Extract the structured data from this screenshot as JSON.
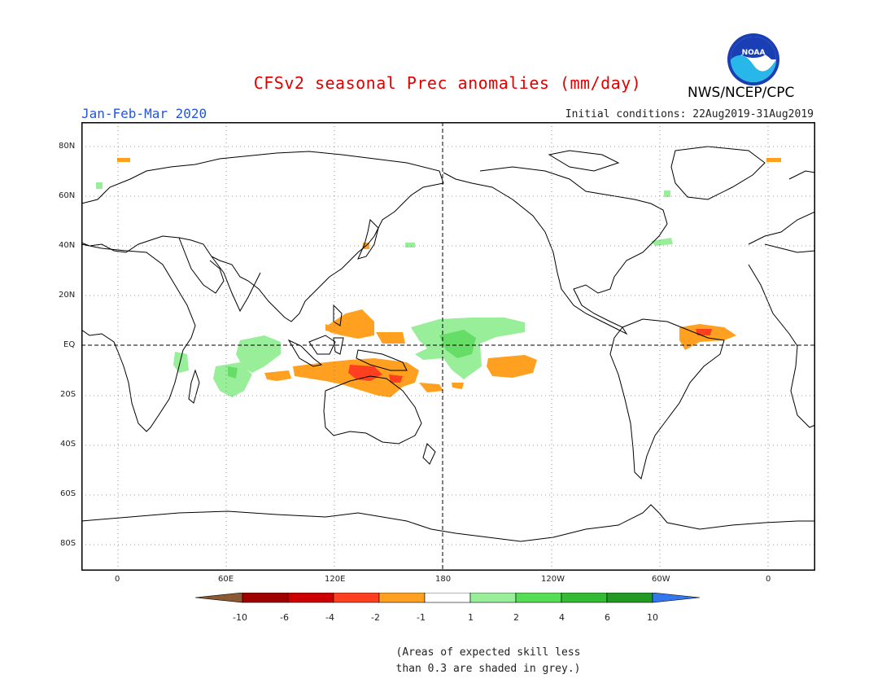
{
  "header": {
    "title": "CFSv2 seasonal Prec anomalies (mm/day)",
    "agency": "NWS/NCEP/CPC",
    "logo_text": "NOAA",
    "period": "Jan-Feb-Mar 2020",
    "initial_conditions": "Initial conditions: 22Aug2019-31Aug2019"
  },
  "map": {
    "projection": "cylindrical equidistant, centered 180",
    "lat_labels": [
      "80N",
      "60N",
      "40N",
      "20N",
      "EQ",
      "20S",
      "40S",
      "60S",
      "80S"
    ],
    "lon_labels": [
      "0",
      "60E",
      "120E",
      "180",
      "120W",
      "60W",
      "0"
    ],
    "grid": "dotted",
    "anomaly_regions": [
      {
        "name": "philippines-sea",
        "category": "-2 to -1",
        "color": "#ffa020"
      },
      {
        "name": "new-guinea-north",
        "category": "-2 to -1",
        "color": "#ffa020"
      },
      {
        "name": "maritime-continent",
        "category": "-4 to -2",
        "color": "#ff4020"
      },
      {
        "name": "indian-ocean-south",
        "category": "-2 to -1",
        "color": "#ffa020"
      },
      {
        "name": "south-pacific-15s",
        "category": "-2 to -1",
        "color": "#ffa020"
      },
      {
        "name": "brazil-northeast",
        "category": "-4 to -1",
        "color": "#ffa020"
      },
      {
        "name": "central-pacific-equator",
        "category": "1 to 4",
        "color": "#66dd66"
      },
      {
        "name": "indian-ocean-west",
        "category": "1 to 2",
        "color": "#99ee99"
      },
      {
        "name": "east-africa",
        "category": "1 to 2",
        "color": "#99ee99"
      }
    ]
  },
  "colorbar": {
    "labels": [
      "-10",
      "-6",
      "-4",
      "-2",
      "-1",
      "1",
      "2",
      "4",
      "6",
      "10"
    ],
    "colors": [
      "#8c5a32",
      "#a00000",
      "#cc0000",
      "#ff4020",
      "#ffa020",
      "#ffffff",
      "#99ee99",
      "#55dd55",
      "#33bb33",
      "#229922",
      "#3377ee"
    ]
  },
  "note": "(Areas of expected skill less than 0.3 are shaded in grey.)"
}
